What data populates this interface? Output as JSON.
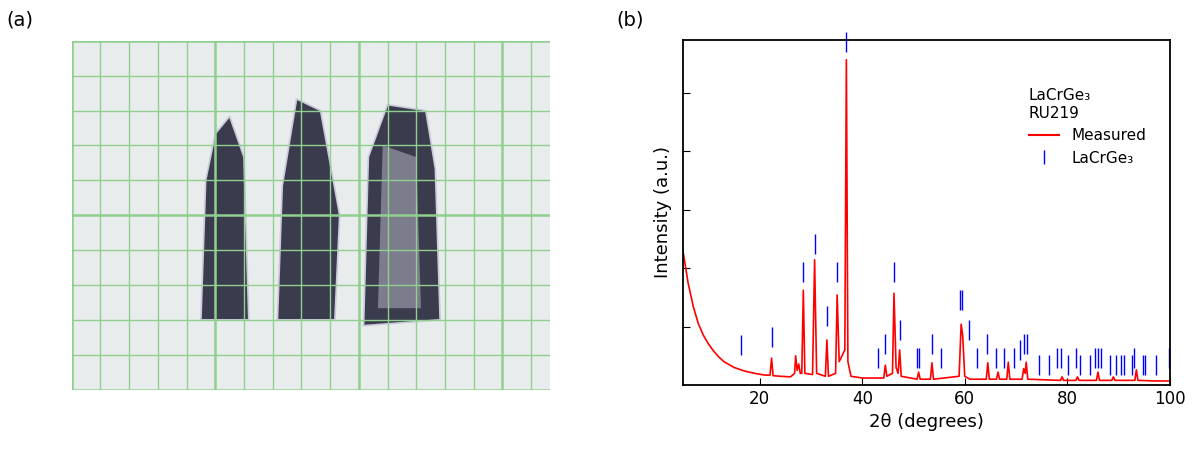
{
  "panel_labels": [
    "(a)",
    "(b)"
  ],
  "chart_data": {
    "type": "line",
    "xlabel": "2θ (degrees)",
    "ylabel": "Intensity (a.u.)",
    "annotations": [
      "LaCrGe₃",
      "RU219"
    ],
    "xlim": [
      5,
      100
    ],
    "xticks": [
      20,
      40,
      60,
      80,
      100
    ],
    "ylim": [
      0,
      5.9
    ],
    "yticks": [
      1,
      2,
      3,
      4,
      5
    ],
    "tick_labels": "x",
    "legend": "upper right",
    "series": [
      {
        "name": "Measured",
        "type": "line",
        "color": "#ff0000",
        "x": [
          5,
          6,
          7,
          8,
          9,
          10,
          11,
          12,
          13,
          14,
          15,
          17,
          19,
          21,
          22.0,
          22.3,
          22.6,
          24,
          26,
          26.8,
          27.0,
          27.3,
          27.6,
          27.9,
          28.2,
          28.5,
          28.8,
          30.3,
          30.7,
          31.1,
          32.8,
          33.1,
          33.4,
          34.8,
          35.1,
          35.5,
          36.6,
          36.9,
          37.2,
          37.8,
          40,
          43,
          44.2,
          44.5,
          44.8,
          45.9,
          46.2,
          46.6,
          47.0,
          47.3,
          47.6,
          50.7,
          51.0,
          51.3,
          53.3,
          53.6,
          53.9,
          58.9,
          59.3,
          59.6,
          60.0,
          61,
          64.2,
          64.5,
          64.8,
          66.2,
          66.5,
          66.8,
          68.2,
          68.5,
          68.8,
          71.2,
          71.5,
          71.8,
          72.0,
          72.3,
          78.7,
          79,
          79.3,
          81.7,
          82,
          82.3,
          85.7,
          86,
          86.3,
          88.7,
          89,
          89.3,
          93.2,
          93.5,
          93.8,
          97,
          100
        ],
        "values": [
          2.3,
          1.75,
          1.35,
          1.05,
          0.85,
          0.7,
          0.58,
          0.48,
          0.4,
          0.35,
          0.3,
          0.24,
          0.2,
          0.17,
          0.17,
          0.46,
          0.16,
          0.15,
          0.14,
          0.2,
          0.5,
          0.25,
          0.36,
          0.2,
          0.2,
          1.62,
          0.2,
          0.18,
          2.14,
          0.2,
          0.15,
          0.77,
          0.15,
          0.2,
          1.54,
          0.4,
          0.6,
          5.56,
          0.4,
          0.15,
          0.12,
          0.12,
          0.12,
          0.34,
          0.15,
          0.2,
          1.57,
          0.3,
          0.2,
          0.6,
          0.15,
          0.1,
          0.22,
          0.1,
          0.1,
          0.38,
          0.1,
          0.15,
          1.04,
          0.85,
          0.15,
          0.1,
          0.1,
          0.38,
          0.1,
          0.1,
          0.22,
          0.1,
          0.1,
          0.39,
          0.1,
          0.1,
          0.28,
          0.2,
          0.39,
          0.1,
          0.08,
          0.14,
          0.08,
          0.08,
          0.14,
          0.08,
          0.08,
          0.22,
          0.08,
          0.08,
          0.14,
          0.08,
          0.08,
          0.26,
          0.08,
          0.07,
          0.07
        ]
      },
      {
        "name": "LaCrGe₃",
        "type": "scatter",
        "marker": "|",
        "color": "#0000ff",
        "x": [
          16.3,
          22.3,
          28.5,
          30.7,
          33.1,
          35.1,
          36.9,
          43.1,
          44.5,
          46.2,
          47.3,
          50.6,
          51.1,
          53.6,
          55.3,
          59.1,
          59.4,
          60.8,
          62.3,
          64.3,
          66.2,
          67.6,
          69.6,
          70.7,
          71.6,
          72.2,
          74.4,
          76.5,
          78.1,
          78.8,
          80.1,
          81.8,
          82.5,
          84.5,
          85.4,
          86.0,
          86.6,
          88.4,
          89.6,
          90.5,
          91.1,
          92.6,
          93.0,
          94.7,
          95.1,
          97.4,
          99.8
        ],
        "values": [
          0.68,
          0.82,
          1.93,
          2.41,
          1.18,
          1.93,
          5.86,
          0.46,
          0.7,
          1.93,
          0.94,
          0.46,
          0.46,
          0.7,
          0.46,
          1.45,
          1.45,
          0.94,
          0.46,
          0.7,
          0.46,
          0.46,
          0.46,
          0.6,
          0.7,
          0.7,
          0.34,
          0.34,
          0.46,
          0.46,
          0.34,
          0.46,
          0.34,
          0.34,
          0.46,
          0.46,
          0.46,
          0.34,
          0.34,
          0.34,
          0.34,
          0.34,
          0.46,
          0.34,
          0.34,
          0.34,
          0.46
        ]
      }
    ]
  }
}
